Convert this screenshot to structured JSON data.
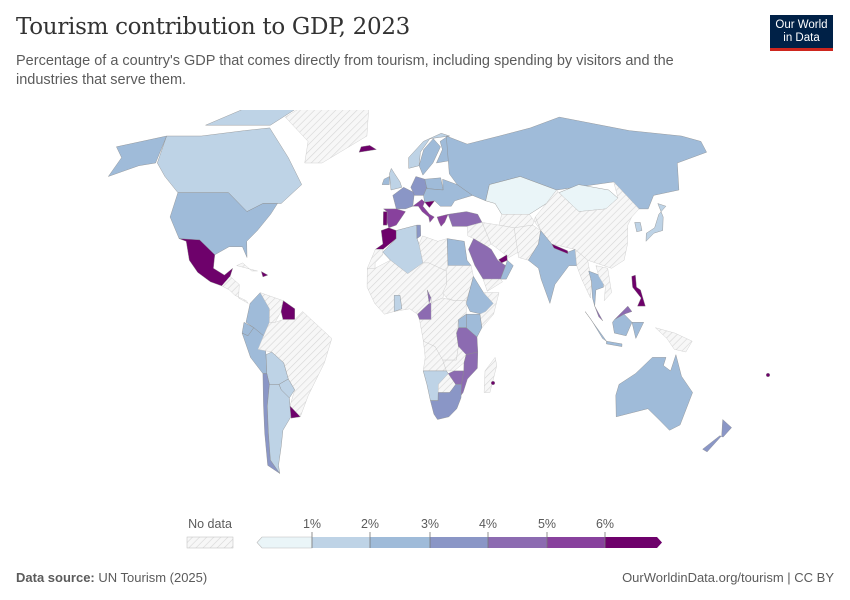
{
  "header": {
    "title": "Tourism contribution to GDP, 2023",
    "subtitle": "Percentage of a country's GDP that comes directly from tourism, including spending by visitors and the industries that serve them.",
    "logo_line1": "Our World",
    "logo_line2": "in Data"
  },
  "footer": {
    "source_label": "Data source:",
    "source_value": "UN Tourism (2025)",
    "link": "OurWorldinData.org/tourism | CC BY"
  },
  "chart_data": {
    "type": "choropleth-map",
    "title": "Tourism contribution to GDP, 2023",
    "unit": "% of GDP",
    "legend": {
      "no_data_label": "No data",
      "no_data_color": "#f2f2f2",
      "tick_labels": [
        "1%",
        "2%",
        "3%",
        "4%",
        "5%",
        "6%"
      ],
      "bins": [
        {
          "range": "<1%",
          "color": "#eaf5f8"
        },
        {
          "range": "1-2%",
          "color": "#bed3e6"
        },
        {
          "range": "2-3%",
          "color": "#9fbbd9"
        },
        {
          "range": "3-4%",
          "color": "#8a96c6"
        },
        {
          "range": "4-5%",
          "color": "#8c6bb1"
        },
        {
          "range": "5-6%",
          "color": "#88419d"
        },
        {
          "range": ">6%",
          "color": "#6e016b"
        }
      ],
      "placement": "bottom"
    },
    "countries": [
      {
        "name": "Canada",
        "bin": "1-2%"
      },
      {
        "name": "Canadian Arctic",
        "bin": "1-2%"
      },
      {
        "name": "Greenland",
        "bin": "no data"
      },
      {
        "name": "United States",
        "bin": "2-3%"
      },
      {
        "name": "Alaska",
        "bin": "2-3%"
      },
      {
        "name": "Mexico",
        "bin": ">6%"
      },
      {
        "name": "Central America",
        "bin": "no data"
      },
      {
        "name": "Cuba",
        "bin": "no data"
      },
      {
        "name": "Dominican Republic",
        "bin": ">6%"
      },
      {
        "name": "Colombia",
        "bin": "2-3%"
      },
      {
        "name": "Venezuela",
        "bin": "no data"
      },
      {
        "name": "Guyana",
        "bin": ">6%"
      },
      {
        "name": "Ecuador",
        "bin": "2-3%"
      },
      {
        "name": "Peru",
        "bin": "2-3%"
      },
      {
        "name": "Brazil",
        "bin": "no data"
      },
      {
        "name": "Bolivia",
        "bin": "1-2%"
      },
      {
        "name": "Paraguay",
        "bin": "1-2%"
      },
      {
        "name": "Chile",
        "bin": "3-4%"
      },
      {
        "name": "Argentina",
        "bin": "1-2%"
      },
      {
        "name": "Uruguay",
        "bin": ">6%"
      },
      {
        "name": "Iceland",
        "bin": ">6%"
      },
      {
        "name": "United Kingdom",
        "bin": "1-2%"
      },
      {
        "name": "Ireland",
        "bin": "2-3%"
      },
      {
        "name": "Norway",
        "bin": "1-2%"
      },
      {
        "name": "Sweden",
        "bin": "2-3%"
      },
      {
        "name": "Finland",
        "bin": "2-3%"
      },
      {
        "name": "France",
        "bin": "3-4%"
      },
      {
        "name": "Spain",
        "bin": "5-6%"
      },
      {
        "name": "Portugal",
        "bin": ">6%"
      },
      {
        "name": "Germany",
        "bin": "3-4%"
      },
      {
        "name": "Poland",
        "bin": "2-3%"
      },
      {
        "name": "Italy",
        "bin": "5-6%"
      },
      {
        "name": "Croatia",
        "bin": ">6%"
      },
      {
        "name": "Greece",
        "bin": "5-6%"
      },
      {
        "name": "Eastern Europe",
        "bin": "2-3%"
      },
      {
        "name": "Russia",
        "bin": "2-3%"
      },
      {
        "name": "Kazakhstan",
        "bin": "<1%"
      },
      {
        "name": "Mongolia",
        "bin": "<1%"
      },
      {
        "name": "China",
        "bin": "no data"
      },
      {
        "name": "Central Asia",
        "bin": "no data"
      },
      {
        "name": "Turkey",
        "bin": "4-5%"
      },
      {
        "name": "Iran",
        "bin": "no data"
      },
      {
        "name": "Iraq and Syria",
        "bin": "no data"
      },
      {
        "name": "Saudi Arabia",
        "bin": "4-5%"
      },
      {
        "name": "United Arab Emirates",
        "bin": ">6%"
      },
      {
        "name": "Oman",
        "bin": "2-3%"
      },
      {
        "name": "Yemen",
        "bin": "no data"
      },
      {
        "name": "Afghanistan and Pakistan",
        "bin": "no data"
      },
      {
        "name": "India",
        "bin": "2-3%"
      },
      {
        "name": "Nepal",
        "bin": ">6%"
      },
      {
        "name": "Myanmar",
        "bin": "no data"
      },
      {
        "name": "Thailand",
        "bin": "2-3%"
      },
      {
        "name": "Vietnam and Laos",
        "bin": "no data"
      },
      {
        "name": "Malaysia (peninsula)",
        "bin": "4-5%"
      },
      {
        "name": "Malaysia (Borneo)",
        "bin": "4-5%"
      },
      {
        "name": "Indonesia (Borneo)",
        "bin": "2-3%"
      },
      {
        "name": "Sumatra",
        "bin": "2-3%"
      },
      {
        "name": "Java",
        "bin": "2-3%"
      },
      {
        "name": "Sulawesi",
        "bin": "2-3%"
      },
      {
        "name": "Papua New Guinea",
        "bin": "no data"
      },
      {
        "name": "Philippines",
        "bin": ">6%"
      },
      {
        "name": "Japan",
        "bin": "1-2%"
      },
      {
        "name": "South Korea",
        "bin": "1-2%"
      },
      {
        "name": "Australia",
        "bin": "2-3%"
      },
      {
        "name": "New Zealand",
        "bin": "3-4%"
      },
      {
        "name": "Morocco",
        "bin": ">6%"
      },
      {
        "name": "Western Sahara",
        "bin": "no data"
      },
      {
        "name": "Algeria",
        "bin": "1-2%"
      },
      {
        "name": "Tunisia",
        "bin": "3-4%"
      },
      {
        "name": "Libya",
        "bin": "no data"
      },
      {
        "name": "Egypt",
        "bin": "2-3%"
      },
      {
        "name": "West Africa",
        "bin": "no data"
      },
      {
        "name": "Sudan",
        "bin": "no data"
      },
      {
        "name": "Ethiopia",
        "bin": "2-3%"
      },
      {
        "name": "Somalia",
        "bin": "no data"
      },
      {
        "name": "Kenya",
        "bin": "2-3%"
      },
      {
        "name": "Ghana",
        "bin": "1-2%"
      },
      {
        "name": "Cameroon",
        "bin": "4-5%"
      },
      {
        "name": "Central Africa",
        "bin": "no data"
      },
      {
        "name": "Uganda",
        "bin": "2-3%"
      },
      {
        "name": "Tanzania",
        "bin": "4-5%"
      },
      {
        "name": "Angola",
        "bin": "no data"
      },
      {
        "name": "Zambia",
        "bin": "no data"
      },
      {
        "name": "Namibia",
        "bin": "1-2%"
      },
      {
        "name": "Botswana",
        "bin": "no data"
      },
      {
        "name": "Zimbabwe",
        "bin": "4-5%"
      },
      {
        "name": "Mozambique",
        "bin": "4-5%"
      },
      {
        "name": "Madagascar",
        "bin": "no data"
      },
      {
        "name": "South Africa",
        "bin": "3-4%"
      },
      {
        "name": "Mauritius",
        "bin": ">6%"
      },
      {
        "name": "Fiji",
        "bin": ">6%"
      }
    ]
  }
}
